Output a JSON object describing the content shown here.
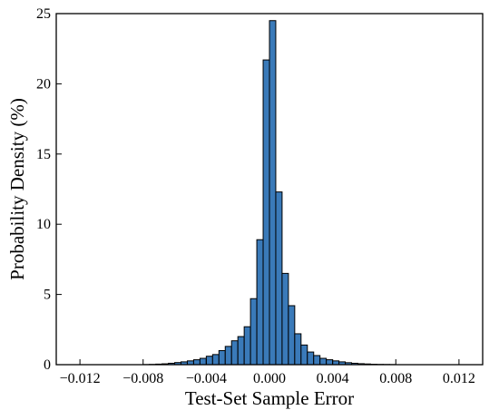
{
  "chart_data": {
    "type": "bar",
    "title": "",
    "xlabel": "Test-Set Sample Error",
    "ylabel": "Probability Density (%)",
    "xlim": [
      -0.0135,
      0.0135
    ],
    "ylim": [
      0,
      25
    ],
    "bin_width": 0.0004,
    "grid": false,
    "xticks": [
      {
        "value": -0.012,
        "label": "−0.012"
      },
      {
        "value": -0.008,
        "label": "−0.008"
      },
      {
        "value": -0.004,
        "label": "−0.004"
      },
      {
        "value": 0,
        "label": "0.000"
      },
      {
        "value": 0.004,
        "label": "0.004"
      },
      {
        "value": 0.008,
        "label": "0.008"
      },
      {
        "value": 0.012,
        "label": "0.012"
      }
    ],
    "yticks": [
      {
        "value": 0,
        "label": "0"
      },
      {
        "value": 5,
        "label": "5"
      },
      {
        "value": 10,
        "label": "10"
      },
      {
        "value": 15,
        "label": "15"
      },
      {
        "value": 20,
        "label": "20"
      },
      {
        "value": 25,
        "label": "25"
      }
    ],
    "bins": [
      {
        "x": -0.008,
        "y": 0.01
      },
      {
        "x": -0.0076,
        "y": 0.02
      },
      {
        "x": -0.0072,
        "y": 0.04
      },
      {
        "x": -0.0068,
        "y": 0.06
      },
      {
        "x": -0.0064,
        "y": 0.1
      },
      {
        "x": -0.006,
        "y": 0.15
      },
      {
        "x": -0.0056,
        "y": 0.2
      },
      {
        "x": -0.0052,
        "y": 0.27
      },
      {
        "x": -0.0048,
        "y": 0.35
      },
      {
        "x": -0.0044,
        "y": 0.45
      },
      {
        "x": -0.004,
        "y": 0.6
      },
      {
        "x": -0.0036,
        "y": 0.72
      },
      {
        "x": -0.0032,
        "y": 1.0
      },
      {
        "x": -0.0028,
        "y": 1.3
      },
      {
        "x": -0.0024,
        "y": 1.7
      },
      {
        "x": -0.002,
        "y": 2.0
      },
      {
        "x": -0.0016,
        "y": 2.7
      },
      {
        "x": -0.0012,
        "y": 4.7
      },
      {
        "x": -0.0008,
        "y": 8.9
      },
      {
        "x": -0.0004,
        "y": 21.7
      },
      {
        "x": 0.0,
        "y": 24.5
      },
      {
        "x": 0.0004,
        "y": 12.3
      },
      {
        "x": 0.0008,
        "y": 6.5
      },
      {
        "x": 0.0012,
        "y": 4.2
      },
      {
        "x": 0.0016,
        "y": 2.2
      },
      {
        "x": 0.002,
        "y": 1.4
      },
      {
        "x": 0.0024,
        "y": 0.9
      },
      {
        "x": 0.0028,
        "y": 0.65
      },
      {
        "x": 0.0032,
        "y": 0.45
      },
      {
        "x": 0.0036,
        "y": 0.35
      },
      {
        "x": 0.004,
        "y": 0.27
      },
      {
        "x": 0.0044,
        "y": 0.2
      },
      {
        "x": 0.0048,
        "y": 0.14
      },
      {
        "x": 0.0052,
        "y": 0.1
      },
      {
        "x": 0.0056,
        "y": 0.07
      },
      {
        "x": 0.006,
        "y": 0.05
      },
      {
        "x": 0.0064,
        "y": 0.03
      },
      {
        "x": 0.0068,
        "y": 0.02
      },
      {
        "x": 0.0072,
        "y": 0.015
      },
      {
        "x": 0.0076,
        "y": 0.01
      }
    ],
    "bar_color": "#3a7ab9"
  }
}
